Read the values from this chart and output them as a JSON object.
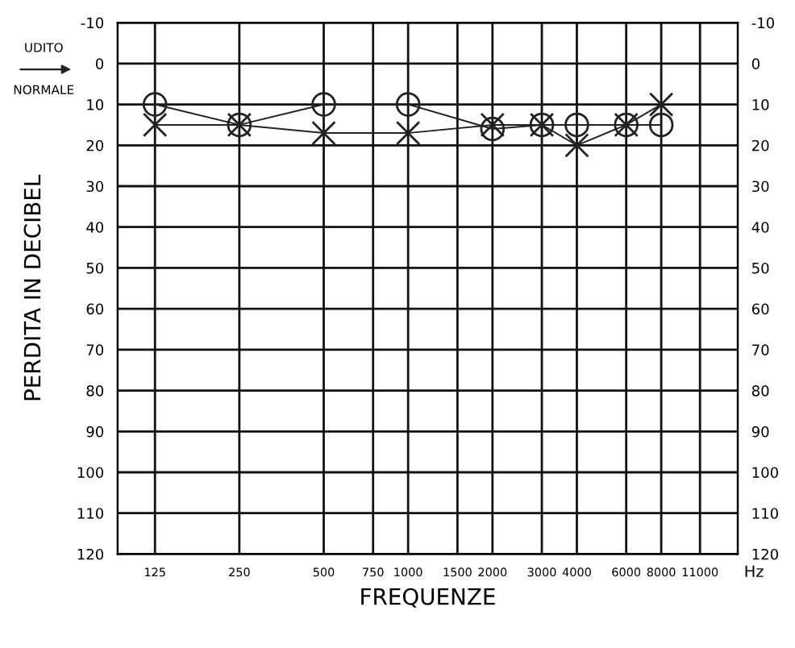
{
  "chart_data": {
    "type": "line",
    "xlabel": "FREQUENZE",
    "ylabel": "PERDITA IN DECIBEL",
    "x": [
      125,
      250,
      500,
      1000,
      2000,
      3000,
      4000,
      6000,
      8000
    ],
    "series": [
      {
        "color": "#222222",
        "marker": "circle",
        "values": [
          10,
          15,
          10,
          10,
          16,
          15,
          15,
          15,
          15
        ]
      },
      {
        "color": "#222222",
        "marker": "cross",
        "values": [
          15,
          15,
          17,
          17,
          15,
          15,
          20,
          15,
          10
        ]
      }
    ],
    "log": "x",
    "xlim": [
      92,
      15000
    ],
    "xticks": [
      125,
      250,
      500,
      750,
      1000,
      1500,
      2000,
      3000,
      4000,
      6000,
      8000,
      11000
    ],
    "ylim": [
      120,
      -10
    ],
    "yticks": [
      -10,
      0,
      10,
      20,
      30,
      40,
      50,
      60,
      70,
      80,
      90,
      100,
      110,
      120
    ],
    "y2lim": [
      120,
      -10
    ],
    "y2ticks": [
      -10,
      0,
      10,
      20,
      30,
      40,
      50,
      60,
      70,
      80,
      90,
      100,
      110,
      120
    ],
    "grid": true,
    "line_style": "solid",
    "annotations": [
      "UDITO",
      "NORMALE",
      "Hz"
    ]
  }
}
